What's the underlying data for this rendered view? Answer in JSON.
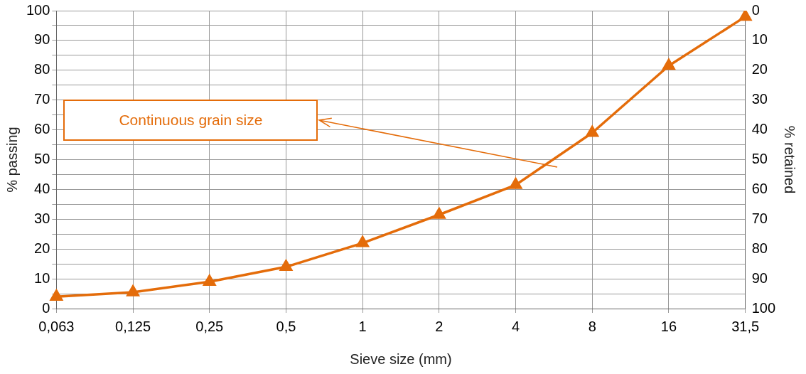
{
  "chart_data": {
    "type": "line",
    "xlabel": "Sieve size (mm)",
    "ylabel": "% passing",
    "y2label": "% retained",
    "categories": [
      "0,063",
      "0,125",
      "0,25",
      "0,5",
      "1",
      "2",
      "4",
      "8",
      "16",
      "31,5"
    ],
    "series": [
      {
        "color": "#e46c0a",
        "values": [
          4,
          5.5,
          9,
          14,
          22,
          31.5,
          41.5,
          59,
          81.5,
          98
        ]
      }
    ],
    "ylim": [
      0,
      100
    ],
    "yticks": [
      0,
      {
        "value": 5,
        "label": null
      },
      10,
      {
        "value": 15,
        "label": null
      },
      20,
      {
        "value": 25,
        "label": null
      },
      30,
      {
        "value": 35,
        "label": null
      },
      40,
      {
        "value": 45,
        "label": null
      },
      50,
      {
        "value": 55,
        "label": null
      },
      60,
      {
        "value": 65,
        "label": null
      },
      70,
      {
        "value": 75,
        "label": null
      },
      80,
      {
        "value": 85,
        "label": null
      },
      90,
      {
        "value": 95,
        "label": null
      },
      100
    ],
    "y2lim": [
      100,
      0
    ],
    "y2ticks": [
      0,
      10,
      20,
      30,
      40,
      50,
      60,
      70,
      80,
      90,
      100
    ],
    "grid": true,
    "legend": false,
    "marker": "triangle",
    "line_style": "solid",
    "annotations": [
      "Continuous grain size"
    ]
  }
}
